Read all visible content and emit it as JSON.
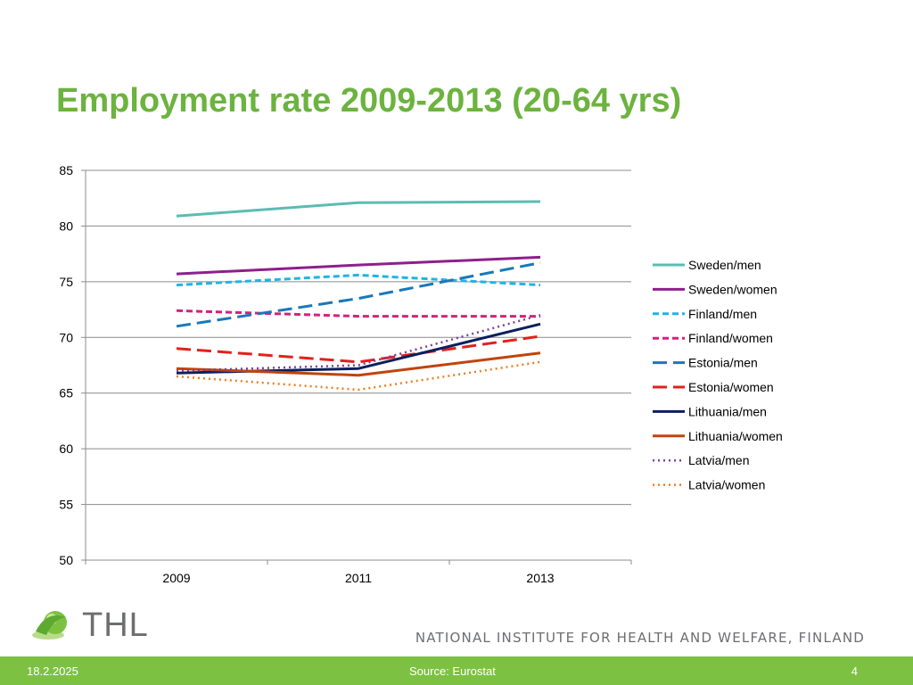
{
  "slide": {
    "title": "Employment rate 2009-2013 (20-64 yrs)"
  },
  "chart_data": {
    "type": "line",
    "title": "",
    "xlabel": "",
    "ylabel": "",
    "categories": [
      "2009",
      "2011",
      "2013"
    ],
    "ylim": [
      50,
      85
    ],
    "yticks": [
      50,
      55,
      60,
      65,
      70,
      75,
      80,
      85
    ],
    "grid": true,
    "legend_position": "right",
    "series": [
      {
        "name": "Sweden/men",
        "values": [
          80.9,
          82.1,
          82.2
        ],
        "color": "#5bbcb1",
        "dash": "solid"
      },
      {
        "name": "Sweden/women",
        "values": [
          75.7,
          76.5,
          77.2
        ],
        "color": "#8e1f8c",
        "dash": "solid"
      },
      {
        "name": "Finland/men",
        "values": [
          74.7,
          75.6,
          74.7
        ],
        "color": "#1eb4e6",
        "dash": "short-dash"
      },
      {
        "name": "Finland/women",
        "values": [
          72.4,
          71.9,
          71.9
        ],
        "color": "#d4217f",
        "dash": "short-dash"
      },
      {
        "name": "Estonia/men",
        "values": [
          71.0,
          73.5,
          76.7
        ],
        "color": "#1a78b8",
        "dash": "long-dash"
      },
      {
        "name": "Estonia/women",
        "values": [
          69.0,
          67.8,
          70.1
        ],
        "color": "#e3201b",
        "dash": "long-dash"
      },
      {
        "name": "Lithuania/men",
        "values": [
          66.8,
          67.2,
          71.2
        ],
        "color": "#0b1f5c",
        "dash": "solid"
      },
      {
        "name": "Lithuania/women",
        "values": [
          67.2,
          66.6,
          68.6
        ],
        "color": "#c0440c",
        "dash": "solid"
      },
      {
        "name": "Latvia/men",
        "values": [
          67.0,
          67.5,
          72.0
        ],
        "color": "#7b3fa0",
        "dash": "dot"
      },
      {
        "name": "Latvia/women",
        "values": [
          66.5,
          65.3,
          67.8
        ],
        "color": "#ee7d21",
        "dash": "dot"
      }
    ]
  },
  "branding": {
    "logo_text": "THL",
    "organization": "NATIONAL INSTITUTE FOR HEALTH AND WELFARE, FINLAND"
  },
  "footer": {
    "date": "18.2.2025",
    "source": "Source: Eurostat",
    "page_number": "4"
  }
}
